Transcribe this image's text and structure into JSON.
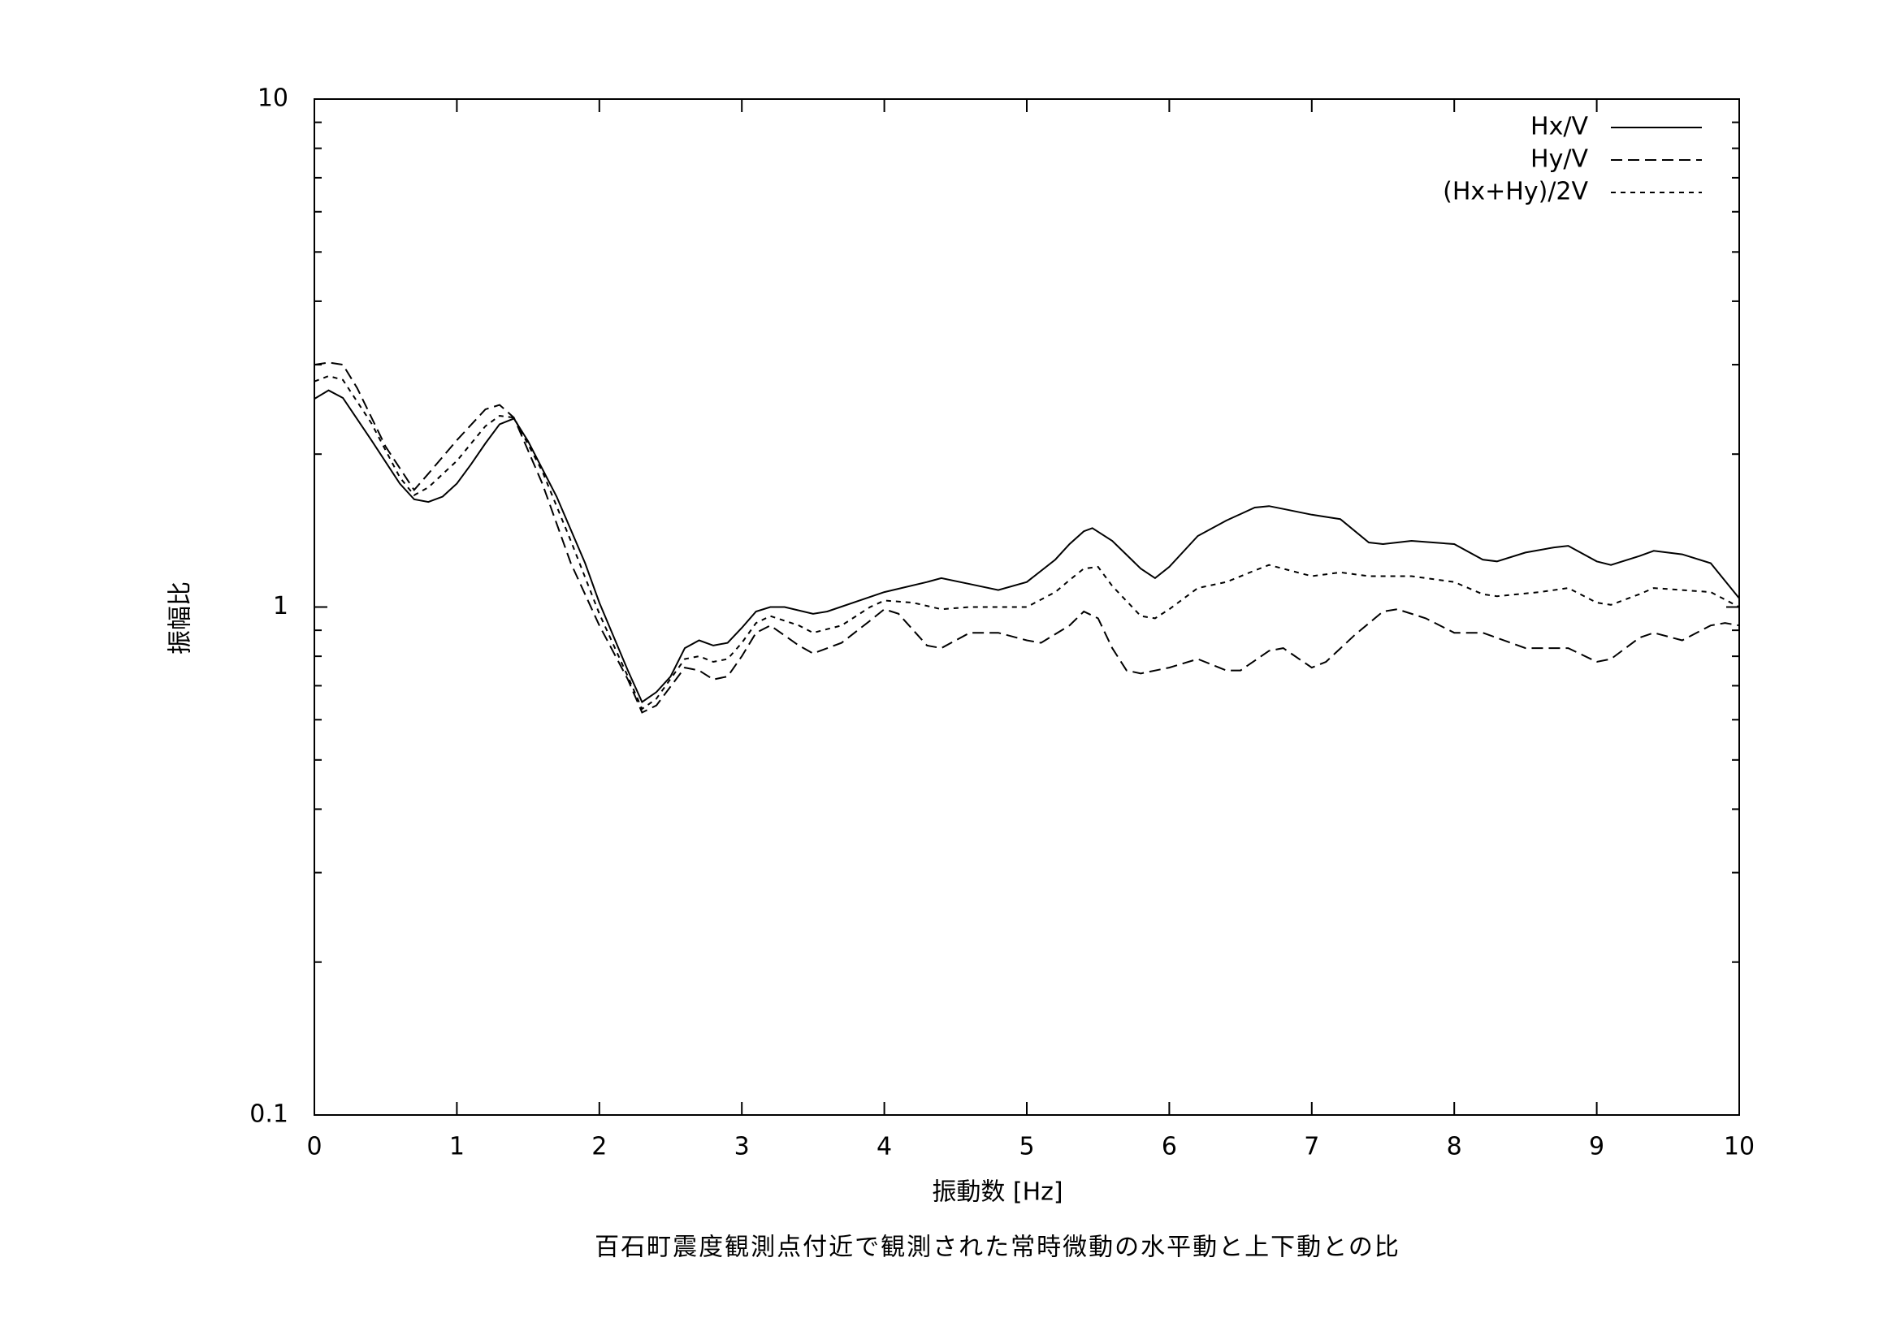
{
  "chart_data": {
    "type": "line",
    "title": "百石町震度観測点付近で観測された常時微動の水平動と上下動との比",
    "xlabel": "振動数 [Hz]",
    "ylabel": "振幅比",
    "xlim": [
      0,
      10
    ],
    "xticks": [
      0,
      1,
      2,
      3,
      4,
      5,
      6,
      7,
      8,
      9,
      10
    ],
    "ylim": [
      0.1,
      10
    ],
    "yticks": [
      0.1,
      1,
      10
    ],
    "yminorticks": [
      0.2,
      0.3,
      0.4,
      0.5,
      0.6,
      0.7,
      0.8,
      0.9,
      2,
      3,
      4,
      5,
      6,
      7,
      8,
      9
    ],
    "ylog": true,
    "legend": "upper right",
    "series": [
      {
        "name": "Hx/V",
        "color": "#000000",
        "dash": "solid",
        "x": [
          0,
          0.1,
          0.2,
          0.4,
          0.6,
          0.7,
          0.8,
          0.9,
          1.0,
          1.1,
          1.2,
          1.3,
          1.4,
          1.5,
          1.7,
          1.9,
          2.0,
          2.2,
          2.3,
          2.4,
          2.5,
          2.6,
          2.7,
          2.8,
          2.9,
          3.0,
          3.1,
          3.2,
          3.3,
          3.5,
          3.6,
          4.0,
          4.3,
          4.4,
          4.6,
          4.8,
          5.0,
          5.2,
          5.3,
          5.4,
          5.46,
          5.6,
          5.8,
          5.9,
          6.0,
          6.2,
          6.4,
          6.6,
          6.7,
          6.8,
          7.0,
          7.2,
          7.4,
          7.5,
          7.7,
          8.0,
          8.2,
          8.3,
          8.5,
          8.7,
          8.8,
          9.0,
          9.1,
          9.3,
          9.4,
          9.6,
          9.8,
          10.0
        ],
        "values": [
          2.57,
          2.67,
          2.58,
          2.13,
          1.75,
          1.63,
          1.61,
          1.65,
          1.75,
          1.91,
          2.1,
          2.29,
          2.35,
          2.12,
          1.65,
          1.22,
          1.02,
          0.75,
          0.65,
          0.68,
          0.73,
          0.83,
          0.86,
          0.84,
          0.85,
          0.91,
          0.98,
          1.0,
          1.0,
          0.97,
          0.98,
          1.07,
          1.12,
          1.14,
          1.11,
          1.08,
          1.12,
          1.24,
          1.33,
          1.41,
          1.43,
          1.35,
          1.19,
          1.14,
          1.2,
          1.38,
          1.48,
          1.57,
          1.58,
          1.56,
          1.52,
          1.49,
          1.34,
          1.33,
          1.35,
          1.33,
          1.24,
          1.23,
          1.28,
          1.31,
          1.32,
          1.23,
          1.21,
          1.26,
          1.29,
          1.27,
          1.22,
          1.04
        ]
      },
      {
        "name": "Hy/V",
        "color": "#000000",
        "dash": "dashed",
        "x": [
          0,
          0.1,
          0.2,
          0.3,
          0.5,
          0.7,
          0.8,
          1.0,
          1.2,
          1.3,
          1.4,
          1.6,
          1.8,
          2.0,
          2.2,
          2.3,
          2.4,
          2.6,
          2.7,
          2.8,
          2.9,
          3.0,
          3.1,
          3.2,
          3.4,
          3.5,
          3.7,
          3.9,
          4.0,
          4.1,
          4.3,
          4.4,
          4.6,
          4.8,
          5.0,
          5.1,
          5.3,
          5.4,
          5.5,
          5.6,
          5.7,
          5.8,
          6.0,
          6.2,
          6.4,
          6.5,
          6.7,
          6.8,
          7.0,
          7.1,
          7.3,
          7.5,
          7.6,
          7.8,
          8.0,
          8.2,
          8.5,
          8.8,
          9.0,
          9.1,
          9.3,
          9.4,
          9.6,
          9.8,
          9.9,
          10.0
        ],
        "values": [
          3.0,
          3.03,
          3.0,
          2.7,
          2.07,
          1.7,
          1.83,
          2.13,
          2.45,
          2.5,
          2.36,
          1.75,
          1.22,
          0.92,
          0.72,
          0.62,
          0.64,
          0.76,
          0.75,
          0.72,
          0.73,
          0.8,
          0.89,
          0.92,
          0.84,
          0.81,
          0.85,
          0.94,
          0.99,
          0.97,
          0.84,
          0.83,
          0.89,
          0.89,
          0.86,
          0.85,
          0.92,
          0.98,
          0.95,
          0.83,
          0.75,
          0.74,
          0.76,
          0.79,
          0.75,
          0.75,
          0.82,
          0.83,
          0.76,
          0.78,
          0.88,
          0.98,
          0.99,
          0.95,
          0.89,
          0.89,
          0.83,
          0.83,
          0.78,
          0.79,
          0.87,
          0.89,
          0.86,
          0.92,
          0.93,
          0.92
        ]
      },
      {
        "name": "(Hx+Hy)/2V",
        "color": "#000000",
        "dash": "dotted",
        "x": [
          0,
          0.1,
          0.2,
          0.4,
          0.6,
          0.7,
          0.8,
          1.0,
          1.2,
          1.3,
          1.4,
          1.6,
          1.8,
          2.0,
          2.2,
          2.3,
          2.4,
          2.6,
          2.7,
          2.8,
          2.9,
          3.0,
          3.1,
          3.2,
          3.4,
          3.5,
          3.7,
          3.9,
          4.0,
          4.2,
          4.4,
          4.6,
          4.8,
          5.0,
          5.2,
          5.3,
          5.4,
          5.5,
          5.6,
          5.8,
          5.9,
          6.0,
          6.2,
          6.4,
          6.6,
          6.7,
          7.0,
          7.1,
          7.2,
          7.4,
          7.7,
          8.0,
          8.2,
          8.3,
          8.6,
          8.8,
          9.0,
          9.1,
          9.3,
          9.4,
          9.6,
          9.8,
          10.0
        ],
        "values": [
          2.78,
          2.85,
          2.8,
          2.3,
          1.8,
          1.66,
          1.72,
          1.94,
          2.27,
          2.38,
          2.36,
          1.85,
          1.35,
          0.97,
          0.73,
          0.63,
          0.66,
          0.79,
          0.8,
          0.78,
          0.79,
          0.85,
          0.93,
          0.96,
          0.92,
          0.89,
          0.92,
          1.0,
          1.03,
          1.02,
          0.99,
          1.0,
          1.0,
          1.0,
          1.07,
          1.13,
          1.19,
          1.2,
          1.1,
          0.96,
          0.95,
          0.99,
          1.09,
          1.12,
          1.18,
          1.21,
          1.15,
          1.16,
          1.17,
          1.15,
          1.15,
          1.12,
          1.06,
          1.05,
          1.07,
          1.09,
          1.02,
          1.01,
          1.06,
          1.09,
          1.08,
          1.07,
          1.0
        ]
      }
    ]
  }
}
